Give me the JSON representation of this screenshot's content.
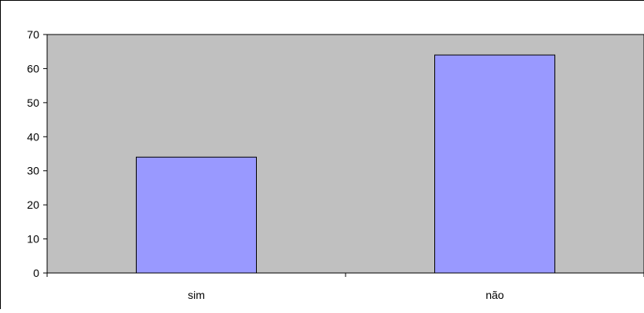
{
  "chart_data": {
    "type": "bar",
    "categories": [
      "sim",
      "não"
    ],
    "values": [
      34,
      64
    ],
    "title": "",
    "xlabel": "",
    "ylabel": "",
    "ylim": [
      0,
      70
    ],
    "yticks": [
      0,
      10,
      20,
      30,
      40,
      50,
      60,
      70
    ],
    "grid": false,
    "legend": "none",
    "colors": {
      "plot_background": "#c0c0c0",
      "bar_fill": "#9999ff",
      "bar_stroke": "#000000",
      "axis": "#000000"
    }
  }
}
